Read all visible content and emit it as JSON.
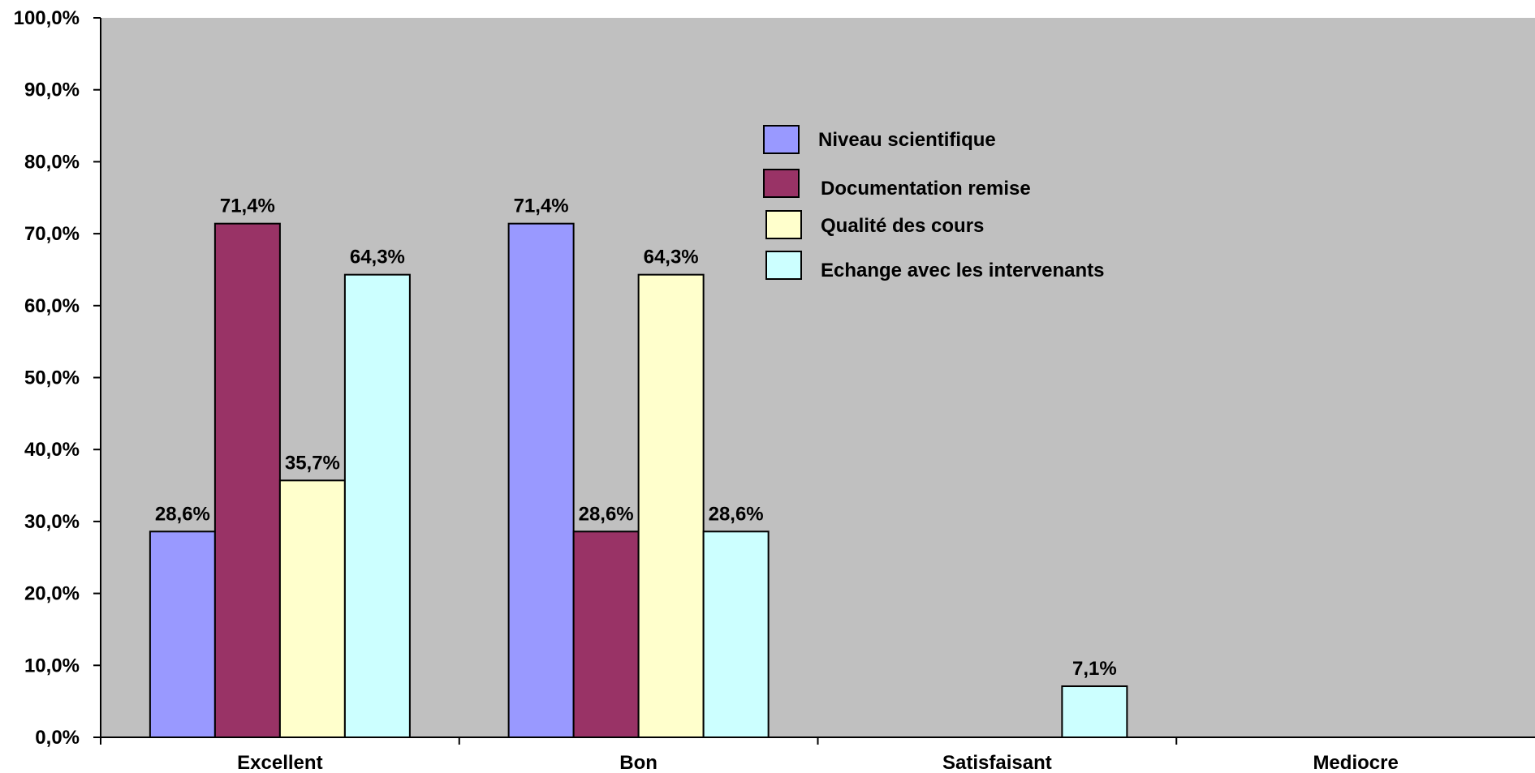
{
  "chart_data": {
    "type": "bar",
    "title": "",
    "xlabel": "",
    "ylabel": "",
    "ylim": [
      0,
      100
    ],
    "ytick_step": 10,
    "categories": [
      "Excellent",
      "Bon",
      "Satisfaisant",
      "Mediocre"
    ],
    "series": [
      {
        "name": "Niveau scientifique",
        "color": "#9999ff",
        "values": [
          28.6,
          71.4,
          0,
          0
        ],
        "labels": [
          "28,6%",
          "71,4%",
          "",
          ""
        ]
      },
      {
        "name": "Documentation remise",
        "color": "#993366",
        "values": [
          71.4,
          28.6,
          0,
          0
        ],
        "labels": [
          "71,4%",
          "28,6%",
          "",
          ""
        ]
      },
      {
        "name": "Qualité des cours",
        "color": "#ffffcc",
        "values": [
          35.7,
          64.3,
          0,
          0
        ],
        "labels": [
          "35,7%",
          "64,3%",
          "",
          ""
        ]
      },
      {
        "name": "Echange avec les intervenants",
        "color": "#ccffff",
        "values": [
          64.3,
          28.6,
          7.1,
          0
        ],
        "labels": [
          "64,3%",
          "28,6%",
          "7,1%",
          ""
        ]
      }
    ],
    "grid": false,
    "plot_background": "#c0c0c0",
    "legend_position": "top-center"
  }
}
